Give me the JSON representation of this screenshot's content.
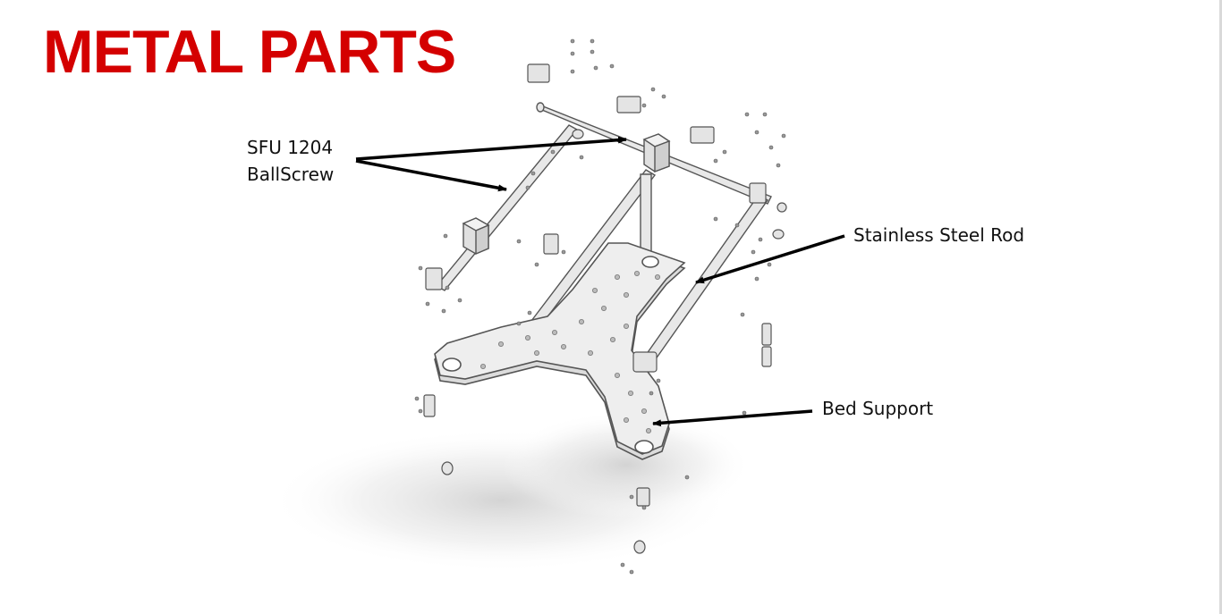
{
  "slide": {
    "title": "METAL PARTS",
    "title_color": "#d40000"
  },
  "callouts": [
    {
      "id": "ballscrew",
      "line1": "SFU 1204",
      "line2": "BallScrew"
    },
    {
      "id": "rod",
      "text": "Stainless Steel Rod"
    },
    {
      "id": "bed",
      "text": "Bed Support"
    }
  ],
  "colors": {
    "part_fill": "#e8e8e8",
    "part_stroke": "#555555",
    "arrow": "#000000"
  }
}
